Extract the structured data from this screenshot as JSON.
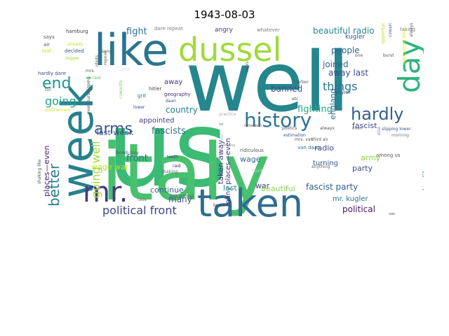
{
  "title": "1943-08-03",
  "words": [
    {
      "text": "us",
      "color": "#3bba75"
    },
    {
      "text": "well",
      "color": "#25868e"
    },
    {
      "text": "italy",
      "color": "#48c16e"
    },
    {
      "text": "taken",
      "color": "#2e6e8e"
    },
    {
      "text": "like",
      "color": "#2b758e"
    },
    {
      "text": "week",
      "color": "#27808e"
    },
    {
      "text": "dussel",
      "color": "#9fda3a"
    },
    {
      "text": "day",
      "color": "#2fb47c"
    },
    {
      "text": "mr.",
      "color": "#443a83"
    },
    {
      "text": "history",
      "color": "#2c728e"
    },
    {
      "text": "hardly",
      "color": "#35608d"
    },
    {
      "text": "arms",
      "color": "#38598c"
    },
    {
      "text": "end",
      "color": "#1f968b"
    },
    {
      "text": "better",
      "color": "#277f8e"
    },
    {
      "text": "going well",
      "color": "#a2da37"
    },
    {
      "text": "political front",
      "color": "#414487"
    },
    {
      "text": "going",
      "color": "#20a386"
    },
    {
      "text": "things",
      "color": "#2a788e"
    },
    {
      "text": "fight",
      "color": "#2c728e"
    },
    {
      "text": "beautiful radio",
      "color": "#24868e"
    },
    {
      "text": "people",
      "color": "#33638d"
    },
    {
      "text": "joined",
      "color": "#31688e"
    },
    {
      "text": "away last",
      "color": "#3e4c8a"
    },
    {
      "text": "banned",
      "color": "#3b528b"
    },
    {
      "text": "fighting",
      "color": "#22a884"
    },
    {
      "text": "fascist",
      "color": "#3f4889"
    },
    {
      "text": "country",
      "color": "#277e8e"
    },
    {
      "text": "fascists",
      "color": "#2d708e"
    },
    {
      "text": "last week",
      "color": "#39568c"
    },
    {
      "text": "front",
      "color": "#2a768e"
    },
    {
      "text": "wage war",
      "color": "#b5de2b"
    },
    {
      "text": "continue",
      "color": "#355e8d"
    },
    {
      "text": "many",
      "color": "#3b528b"
    },
    {
      "text": "places—even",
      "color": "#482374"
    },
    {
      "text": "taken away",
      "color": "#46327e"
    },
    {
      "text": "many places—even",
      "color": "#472f7d"
    },
    {
      "text": "wage",
      "color": "#2f6b8e"
    },
    {
      "text": "war",
      "color": "#433e85"
    },
    {
      "text": "radio",
      "color": "#3e4a89"
    },
    {
      "text": "turning",
      "color": "#375b8d"
    },
    {
      "text": "army",
      "color": "#8ed645"
    },
    {
      "text": "party",
      "color": "#3d4e8a"
    },
    {
      "text": "fascist party",
      "color": "#33638d"
    },
    {
      "text": "beautiful",
      "color": "#86d549"
    },
    {
      "text": "last",
      "color": "#20928c"
    },
    {
      "text": "mr. kugler",
      "color": "#2d708e"
    },
    {
      "text": "political",
      "color": "#481668"
    },
    {
      "text": "country like",
      "color": "#2e6f8e"
    },
    {
      "text": "england",
      "color": "#30698e"
    },
    {
      "text": "appointed",
      "color": "#433e85"
    },
    {
      "text": "away",
      "color": "#46307e"
    },
    {
      "text": "angry",
      "color": "#443983"
    },
    {
      "text": "kugler",
      "color": "#3b518b"
    },
    {
      "text": "taking",
      "color": "#7c7c7c"
    },
    {
      "text": "hitler",
      "color": "#4a4a4a"
    },
    {
      "text": "grit",
      "color": "#2a788e"
    },
    {
      "text": "geography",
      "color": "#472d7b"
    },
    {
      "text": "opportunity",
      "color": "#b8de29"
    },
    {
      "text": "dare repeat",
      "color": "#7c7c7c"
    },
    {
      "text": "whatever",
      "color": "#7c7c7c"
    },
    {
      "text": "hamburg",
      "color": "#444444"
    },
    {
      "text": "says",
      "color": "#555555"
    },
    {
      "text": "air",
      "color": "#555555"
    },
    {
      "text": "leaf",
      "color": "#c4e021"
    },
    {
      "text": "hardly dare",
      "color": "#3b518b"
    },
    {
      "text": "mrs.",
      "color": "#555555"
    },
    {
      "text": "air raid",
      "color": "#4ac16d"
    },
    {
      "text": "bigger",
      "color": "#9bd93c"
    },
    {
      "text": "fall",
      "color": "#777777"
    },
    {
      "text": "southerners",
      "color": "#d2e21b"
    },
    {
      "text": "shaking like",
      "color": "#555555"
    },
    {
      "text": "even burst",
      "color": "#555555"
    },
    {
      "text": "already",
      "color": "#bddf26"
    },
    {
      "text": "decided",
      "color": "#3a548c"
    },
    {
      "text": "bang",
      "color": "#555555"
    },
    {
      "text": "idiots",
      "color": "#555555"
    },
    {
      "text": "repeat",
      "color": "#666666"
    },
    {
      "text": "slipping",
      "color": "#555555"
    },
    {
      "text": "bomb italy",
      "color": "#555555"
    },
    {
      "text": "daan",
      "color": "#3b528b"
    },
    {
      "text": "raid",
      "color": "#482475"
    },
    {
      "text": "teeth",
      "color": "#453781"
    },
    {
      "text": "lower",
      "color": "#3b518b"
    },
    {
      "text": "cowardly",
      "color": "#7ad151"
    },
    {
      "text": "shaking",
      "color": "#6a6a6a"
    },
    {
      "text": "among",
      "color": "#9a9a9a"
    },
    {
      "text": "fade",
      "color": "#777777"
    },
    {
      "text": "bomb",
      "color": "#444444"
    },
    {
      "text": "practice",
      "color": "#aaaaaa"
    },
    {
      "text": "rotterdam",
      "color": "#555555"
    },
    {
      "text": "let",
      "color": "#777777"
    },
    {
      "text": "anything else",
      "color": "#bbbbbb"
    },
    {
      "text": "politics",
      "color": "#555555"
    },
    {
      "text": "estimation",
      "color": "#3b528b"
    },
    {
      "text": "ridiculous",
      "color": "#555555"
    },
    {
      "text": "van daan",
      "color": "#2e6e8e"
    },
    {
      "text": "third",
      "color": "#cccccc"
    },
    {
      "text": "mrs. van",
      "color": "#555555"
    },
    {
      "text": "third air",
      "color": "#555555"
    },
    {
      "text": "among us",
      "color": "#555555"
    },
    {
      "text": "anything",
      "color": "#666666"
    },
    {
      "text": "always",
      "color": "#555555"
    },
    {
      "text": "even",
      "color": "#777777"
    },
    {
      "text": "else",
      "color": "#888888"
    },
    {
      "text": "harbor",
      "color": "#555555"
    },
    {
      "text": "etc.",
      "color": "#555555"
    },
    {
      "text": "tears",
      "color": "#555555"
    },
    {
      "text": "english",
      "color": "#3b528b"
    },
    {
      "text": "one",
      "color": "#555555"
    },
    {
      "text": "burst",
      "color": "#555555"
    },
    {
      "text": "cowardly one",
      "color": "#3b528b"
    },
    {
      "text": "always said",
      "color": "#555555"
    },
    {
      "text": "morning",
      "color": "#777777"
    },
    {
      "text": "slipping lower",
      "color": "#3b528b"
    },
    {
      "text": "sponsored day",
      "color": "#e2e418"
    },
    {
      "text": "one among",
      "color": "#555555"
    },
    {
      "text": "said",
      "color": "#dddddd"
    },
    {
      "text": "van",
      "color": "#555555"
    }
  ]
}
